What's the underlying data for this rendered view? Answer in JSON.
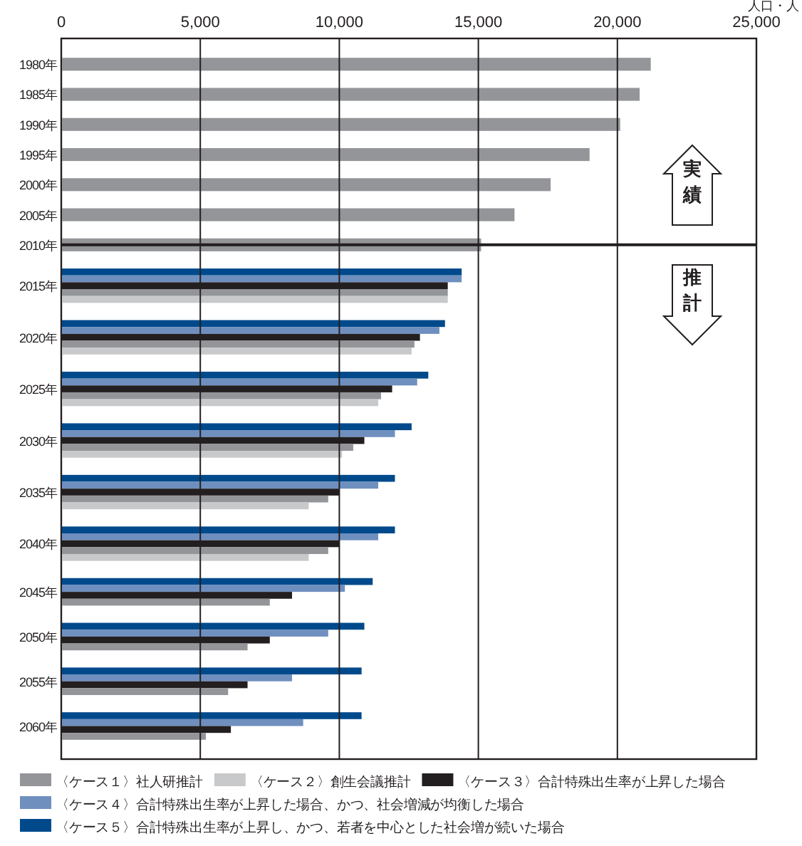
{
  "chart_data": {
    "type": "bar",
    "orientation": "horizontal",
    "xlabel": "人口・人",
    "categories": [
      "1980年",
      "1985年",
      "1990年",
      "1995年",
      "2000年",
      "2005年",
      "2010年",
      "2015年",
      "2020年",
      "2025年",
      "2030年",
      "2035年",
      "2040年",
      "2045年",
      "2050年",
      "2055年",
      "2060年"
    ],
    "series": [
      {
        "name": "〈ケース５〉合計特殊出生率が上昇し、かつ、若者を中心とした社会増が続いた場合",
        "color": "#004a8c",
        "values": [
          null,
          null,
          null,
          null,
          null,
          null,
          null,
          14400,
          13800,
          13200,
          12600,
          12000,
          12000,
          11200,
          10900,
          10800,
          10800
        ]
      },
      {
        "name": "〈ケース４〉合計特殊出生率が上昇した場合、かつ、社会増減が均衡した場合",
        "color": "#6f8fbf",
        "values": [
          null,
          null,
          null,
          null,
          null,
          null,
          null,
          14400,
          13600,
          12800,
          12000,
          11400,
          11400,
          10200,
          9600,
          8300,
          8700
        ]
      },
      {
        "name": "〈ケース３〉合計特殊出生率が上昇した場合",
        "color": "#231f20",
        "values": [
          null,
          null,
          null,
          null,
          null,
          null,
          null,
          13900,
          12900,
          11900,
          10900,
          10000,
          10000,
          8300,
          7500,
          6700,
          6100
        ]
      },
      {
        "name": "〈ケース１〉社人研推計",
        "color": "#939598",
        "values": [
          21200,
          20800,
          20100,
          19000,
          17600,
          16300,
          15100,
          13900,
          12700,
          11500,
          10500,
          9600,
          9600,
          7500,
          6700,
          6000,
          5200
        ]
      },
      {
        "name": "〈ケース２〉創生会議推計",
        "color": "#c8c9ca",
        "values": [
          null,
          null,
          null,
          null,
          null,
          null,
          null,
          13900,
          12600,
          11400,
          10100,
          8900,
          8900,
          null,
          null,
          null,
          null
        ]
      }
    ],
    "xlim": [
      0,
      25000
    ],
    "xticks": [
      0,
      {
        "value": 5000,
        "label": "5,000"
      },
      {
        "value": 10000,
        "label": "10,000"
      },
      {
        "value": 15000,
        "label": "15,000"
      },
      {
        "value": 20000,
        "label": "20,000"
      },
      {
        "value": 25000,
        "label": "25,000"
      }
    ],
    "grid": "x",
    "legend": "bottom",
    "ref_lines": [
      {
        "axis": "y",
        "value": "2010年",
        "color": "#231f20"
      }
    ],
    "annotations": [
      "実績",
      "推計"
    ]
  }
}
